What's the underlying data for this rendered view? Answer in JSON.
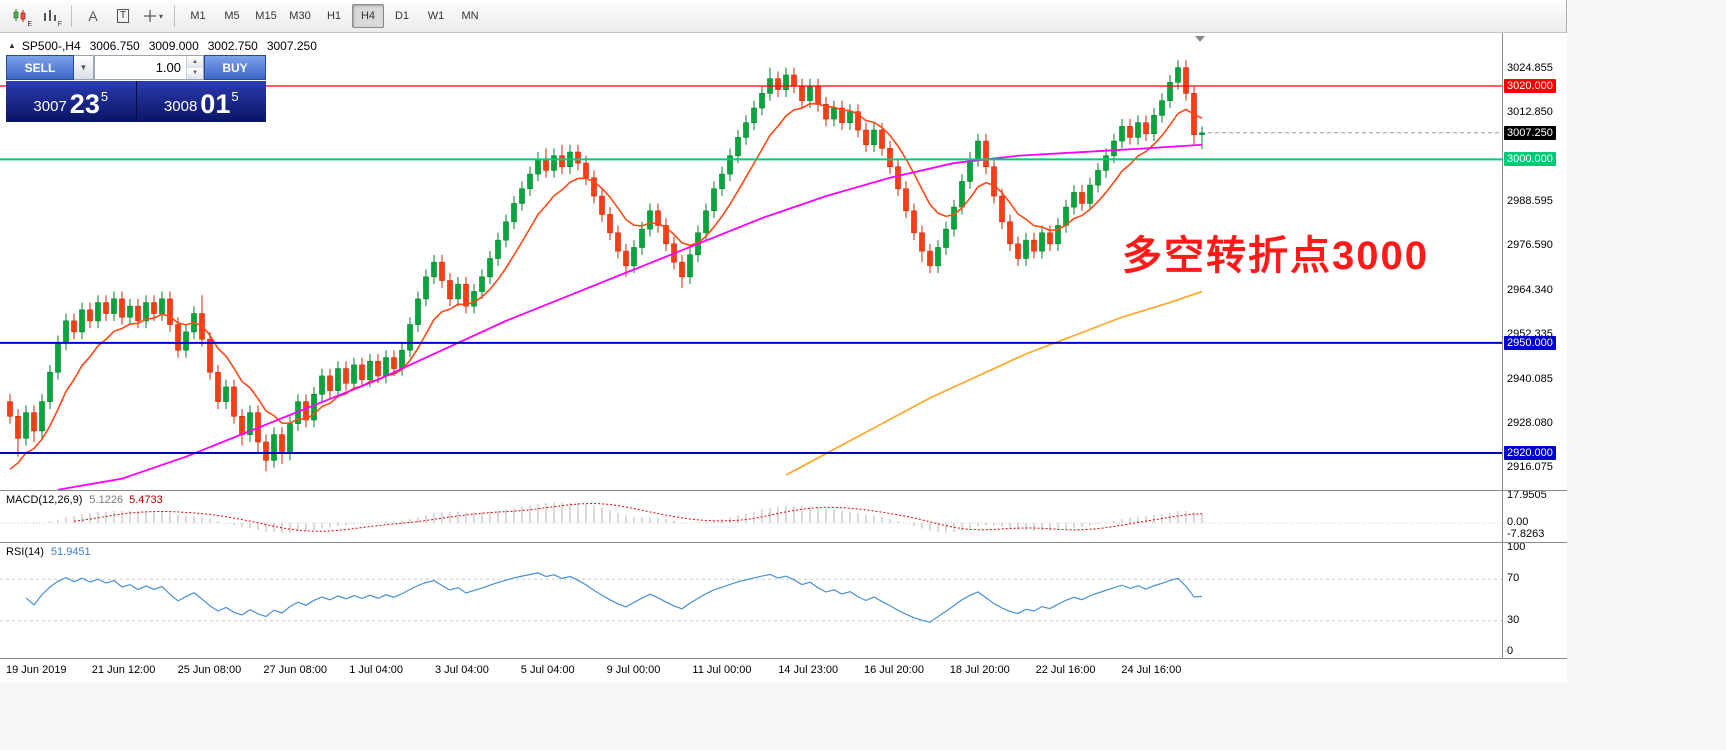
{
  "toolbar": {
    "icons": [
      {
        "name": "candlestick-chart-icon",
        "label": "E"
      },
      {
        "name": "indicator-grid-icon",
        "label": "F"
      },
      {
        "name": "font-tool-icon",
        "label": "A"
      },
      {
        "name": "text-tool-icon",
        "label": "T"
      },
      {
        "name": "cursor-tools-icon",
        "label": "▾"
      }
    ],
    "timeframes": [
      "M1",
      "M5",
      "M15",
      "M30",
      "H1",
      "H4",
      "D1",
      "W1",
      "MN"
    ],
    "active_timeframe": "H4"
  },
  "header": {
    "symbol": "SP500-,H4",
    "open": "3006.750",
    "high": "3009.000",
    "low": "3002.750",
    "close": "3007.250"
  },
  "trade_panel": {
    "sell_label": "SELL",
    "buy_label": "BUY",
    "volume": "1.00",
    "bid": {
      "prefix": "3007",
      "big": "23",
      "sup": "5"
    },
    "ask": {
      "prefix": "3008",
      "big": "01",
      "sup": "5"
    }
  },
  "annotation": {
    "text": "多空转折点3000",
    "color": "#ff1a1a"
  },
  "price_axis": {
    "ticks": [
      "3024.855",
      "3012.850",
      "2988.595",
      "2976.590",
      "2964.340",
      "2952.335",
      "2940.085",
      "2928.080",
      "2916.075"
    ],
    "levels": [
      {
        "label": "3020.000",
        "price": 3020,
        "color": "#ff0000",
        "line_width": 1.3
      },
      {
        "label": "3000.000",
        "price": 3000,
        "color": "#00c97a",
        "line_width": 2
      },
      {
        "label": "2950.000",
        "price": 2950,
        "color": "#0000cd",
        "line_width": 2
      },
      {
        "label": "2920.000",
        "price": 2920,
        "color": "#0000cd",
        "line_width": 2
      }
    ],
    "current": {
      "label": "3007.250",
      "price": 3007.25,
      "bg": "#000000"
    }
  },
  "macd": {
    "title": "MACD(12,26,9)",
    "main_value": "5.1226",
    "signal_value": "5.4733",
    "axis_labels": [
      {
        "text": "17.9505",
        "value": 17.9505
      },
      {
        "text": "0.00",
        "value": 0
      },
      {
        "text": "-7.8263",
        "value": -7.8263
      }
    ]
  },
  "rsi": {
    "title": "RSI(14)",
    "value": "51.9451",
    "axis_labels": [
      {
        "text": "100",
        "value": 100
      },
      {
        "text": "70",
        "value": 70
      },
      {
        "text": "30",
        "value": 30
      },
      {
        "text": "0",
        "value": 0
      }
    ],
    "levels": [
      70,
      30
    ]
  },
  "time_axis": [
    "19 Jun 2019",
    "21 Jun 12:00",
    "25 Jun 08:00",
    "27 Jun 08:00",
    "1 Jul 04:00",
    "3 Jul 04:00",
    "5 Jul 04:00",
    "9 Jul 00:00",
    "11 Jul 00:00",
    "14 Jul 23:00",
    "16 Jul 20:00",
    "18 Jul 20:00",
    "22 Jul 16:00",
    "24 Jul 16:00"
  ],
  "chart_data": {
    "type": "candlestick",
    "symbol": "SP500-",
    "timeframe": "H4",
    "visible_price_range": [
      2909,
      3033
    ],
    "candles": [
      [
        2934,
        2936,
        2928,
        2930
      ],
      [
        2930,
        2932,
        2919,
        2924
      ],
      [
        2924,
        2933,
        2922,
        2931
      ],
      [
        2931,
        2933,
        2923,
        2926
      ],
      [
        2926,
        2936,
        2924,
        2934
      ],
      [
        2934,
        2944,
        2932,
        2942
      ],
      [
        2942,
        2952,
        2940,
        2950
      ],
      [
        2950,
        2958,
        2948,
        2956
      ],
      [
        2956,
        2958,
        2951,
        2953
      ],
      [
        2953,
        2961,
        2951,
        2959
      ],
      [
        2959,
        2961,
        2954,
        2956
      ],
      [
        2956,
        2963,
        2954,
        2961
      ],
      [
        2961,
        2963,
        2956,
        2958
      ],
      [
        2958,
        2964,
        2956,
        2962
      ],
      [
        2962,
        2964,
        2955,
        2957
      ],
      [
        2957,
        2962,
        2955,
        2960
      ],
      [
        2960,
        2962,
        2954,
        2956
      ],
      [
        2956,
        2963,
        2954,
        2961
      ],
      [
        2961,
        2963,
        2956,
        2958
      ],
      [
        2958,
        2964,
        2956,
        2962
      ],
      [
        2962,
        2964,
        2953,
        2955
      ],
      [
        2955,
        2957,
        2946,
        2948
      ],
      [
        2948,
        2955,
        2946,
        2953
      ],
      [
        2953,
        2960,
        2951,
        2958
      ],
      [
        2958,
        2963,
        2949,
        2951
      ],
      [
        2951,
        2953,
        2940,
        2942
      ],
      [
        2942,
        2944,
        2932,
        2934
      ],
      [
        2934,
        2940,
        2932,
        2938
      ],
      [
        2938,
        2940,
        2928,
        2930
      ],
      [
        2930,
        2932,
        2922,
        2925
      ],
      [
        2925,
        2933,
        2923,
        2931
      ],
      [
        2931,
        2933,
        2920,
        2923
      ],
      [
        2923,
        2925,
        2915,
        2918
      ],
      [
        2918,
        2927,
        2916,
        2925
      ],
      [
        2925,
        2927,
        2917,
        2920
      ],
      [
        2920,
        2930,
        2918,
        2928
      ],
      [
        2928,
        2936,
        2926,
        2934
      ],
      [
        2934,
        2936,
        2927,
        2929
      ],
      [
        2929,
        2938,
        2927,
        2936
      ],
      [
        2936,
        2943,
        2934,
        2941
      ],
      [
        2941,
        2943,
        2935,
        2937
      ],
      [
        2937,
        2945,
        2935,
        2943
      ],
      [
        2943,
        2945,
        2937,
        2939
      ],
      [
        2939,
        2946,
        2937,
        2944
      ],
      [
        2944,
        2946,
        2938,
        2940
      ],
      [
        2940,
        2947,
        2938,
        2945
      ],
      [
        2945,
        2947,
        2939,
        2941
      ],
      [
        2941,
        2948,
        2939,
        2946
      ],
      [
        2946,
        2948,
        2941,
        2943
      ],
      [
        2943,
        2950,
        2941,
        2948
      ],
      [
        2948,
        2957,
        2946,
        2955
      ],
      [
        2955,
        2964,
        2953,
        2962
      ],
      [
        2962,
        2970,
        2960,
        2968
      ],
      [
        2968,
        2974,
        2966,
        2972
      ],
      [
        2972,
        2974,
        2965,
        2967
      ],
      [
        2967,
        2969,
        2960,
        2962
      ],
      [
        2962,
        2968,
        2960,
        2966
      ],
      [
        2966,
        2968,
        2958,
        2960
      ],
      [
        2960,
        2966,
        2958,
        2964
      ],
      [
        2964,
        2970,
        2962,
        2968
      ],
      [
        2968,
        2975,
        2966,
        2973
      ],
      [
        2973,
        2980,
        2971,
        2978
      ],
      [
        2978,
        2985,
        2976,
        2983
      ],
      [
        2983,
        2990,
        2981,
        2988
      ],
      [
        2988,
        2994,
        2986,
        2992
      ],
      [
        2992,
        2998,
        2990,
        2996
      ],
      [
        2996,
        3002,
        2994,
        3000
      ],
      [
        3000,
        3003,
        2995,
        2997
      ],
      [
        2997,
        3003,
        2995,
        3001
      ],
      [
        3001,
        3004,
        2996,
        2998
      ],
      [
        2998,
        3004,
        2996,
        3002
      ],
      [
        3002,
        3004,
        2997,
        2999
      ],
      [
        2999,
        3001,
        2993,
        2995
      ],
      [
        2995,
        2997,
        2988,
        2990
      ],
      [
        2990,
        2992,
        2983,
        2985
      ],
      [
        2985,
        2987,
        2978,
        2980
      ],
      [
        2980,
        2982,
        2973,
        2975
      ],
      [
        2975,
        2977,
        2968,
        2971
      ],
      [
        2971,
        2978,
        2969,
        2976
      ],
      [
        2976,
        2983,
        2974,
        2981
      ],
      [
        2981,
        2988,
        2979,
        2986
      ],
      [
        2986,
        2988,
        2980,
        2982
      ],
      [
        2982,
        2984,
        2975,
        2977
      ],
      [
        2977,
        2979,
        2970,
        2972
      ],
      [
        2972,
        2974,
        2965,
        2968
      ],
      [
        2968,
        2976,
        2966,
        2974
      ],
      [
        2974,
        2982,
        2972,
        2980
      ],
      [
        2980,
        2988,
        2978,
        2986
      ],
      [
        2986,
        2994,
        2984,
        2992
      ],
      [
        2992,
        2998,
        2990,
        2996
      ],
      [
        2996,
        3003,
        2994,
        3001
      ],
      [
        3001,
        3008,
        2999,
        3006
      ],
      [
        3006,
        3012,
        3004,
        3010
      ],
      [
        3010,
        3016,
        3008,
        3014
      ],
      [
        3014,
        3020,
        3012,
        3018
      ],
      [
        3018,
        3025,
        3016,
        3022
      ],
      [
        3022,
        3024,
        3017,
        3019
      ],
      [
        3019,
        3025,
        3017,
        3023
      ],
      [
        3023,
        3025,
        3018,
        3020
      ],
      [
        3020,
        3022,
        3014,
        3016
      ],
      [
        3016,
        3022,
        3014,
        3020
      ],
      [
        3020,
        3022,
        3013,
        3015
      ],
      [
        3015,
        3017,
        3009,
        3011
      ],
      [
        3011,
        3016,
        3009,
        3014
      ],
      [
        3014,
        3016,
        3008,
        3010
      ],
      [
        3010,
        3015,
        3008,
        3013
      ],
      [
        3013,
        3015,
        3006,
        3008
      ],
      [
        3008,
        3010,
        3002,
        3004
      ],
      [
        3004,
        3010,
        3002,
        3008
      ],
      [
        3008,
        3010,
        3001,
        3003
      ],
      [
        3003,
        3005,
        2996,
        2998
      ],
      [
        2998,
        3000,
        2990,
        2992
      ],
      [
        2992,
        2994,
        2984,
        2986
      ],
      [
        2986,
        2988,
        2978,
        2980
      ],
      [
        2980,
        2982,
        2972,
        2975
      ],
      [
        2975,
        2977,
        2969,
        2971
      ],
      [
        2971,
        2978,
        2969,
        2976
      ],
      [
        2976,
        2983,
        2974,
        2981
      ],
      [
        2981,
        2989,
        2979,
        2987
      ],
      [
        2987,
        2996,
        2985,
        2994
      ],
      [
        2994,
        3002,
        2992,
        3000
      ],
      [
        3000,
        3007,
        2998,
        3005
      ],
      [
        3005,
        3007,
        2996,
        2998
      ],
      [
        2998,
        3000,
        2988,
        2990
      ],
      [
        2990,
        2992,
        2981,
        2983
      ],
      [
        2983,
        2985,
        2975,
        2977
      ],
      [
        2977,
        2979,
        2971,
        2973
      ],
      [
        2973,
        2980,
        2971,
        2978
      ],
      [
        2978,
        2980,
        2973,
        2975
      ],
      [
        2975,
        2982,
        2973,
        2980
      ],
      [
        2980,
        2982,
        2975,
        2977
      ],
      [
        2977,
        2984,
        2975,
        2982
      ],
      [
        2982,
        2989,
        2980,
        2987
      ],
      [
        2987,
        2993,
        2985,
        2991
      ],
      [
        2991,
        2993,
        2986,
        2988
      ],
      [
        2988,
        2995,
        2986,
        2993
      ],
      [
        2993,
        2999,
        2991,
        2997
      ],
      [
        2997,
        3003,
        2995,
        3001
      ],
      [
        3001,
        3007,
        2999,
        3005
      ],
      [
        3005,
        3011,
        3003,
        3009
      ],
      [
        3009,
        3011,
        3004,
        3006
      ],
      [
        3006,
        3012,
        3004,
        3010
      ],
      [
        3010,
        3012,
        3005,
        3007
      ],
      [
        3007,
        3014,
        3005,
        3012
      ],
      [
        3012,
        3018,
        3010,
        3016
      ],
      [
        3016,
        3023,
        3014,
        3021
      ],
      [
        3021,
        3027,
        3019,
        3025
      ],
      [
        3025,
        3027,
        3016,
        3018
      ],
      [
        3018,
        3020,
        3004,
        3006.75
      ],
      [
        3006.75,
        3009,
        3002.75,
        3007.25
      ]
    ],
    "overlays": {
      "ma_fast": {
        "color": "#ff4814",
        "type": "ema",
        "alpha": 0.2,
        "seed": 2912
      },
      "ma_mid": {
        "color": "#ff00ff",
        "points": [
          [
            6,
            2910
          ],
          [
            14,
            2913
          ],
          [
            22,
            2919
          ],
          [
            30,
            2926
          ],
          [
            38,
            2933
          ],
          [
            46,
            2940
          ],
          [
            54,
            2948
          ],
          [
            62,
            2956
          ],
          [
            70,
            2963
          ],
          [
            78,
            2970
          ],
          [
            86,
            2977
          ],
          [
            94,
            2984
          ],
          [
            102,
            2990
          ],
          [
            110,
            2995
          ],
          [
            118,
            2999
          ],
          [
            126,
            3001
          ],
          [
            134,
            3002
          ],
          [
            142,
            3003
          ],
          [
            149,
            3004
          ]
        ]
      },
      "ma_slow": {
        "color": "#ffaa33",
        "points": [
          [
            97,
            2914
          ],
          [
            103,
            2921
          ],
          [
            109,
            2928
          ],
          [
            115,
            2935
          ],
          [
            121,
            2941
          ],
          [
            127,
            2947
          ],
          [
            133,
            2952
          ],
          [
            139,
            2957
          ],
          [
            145,
            2961
          ],
          [
            149,
            2964
          ]
        ]
      }
    }
  }
}
